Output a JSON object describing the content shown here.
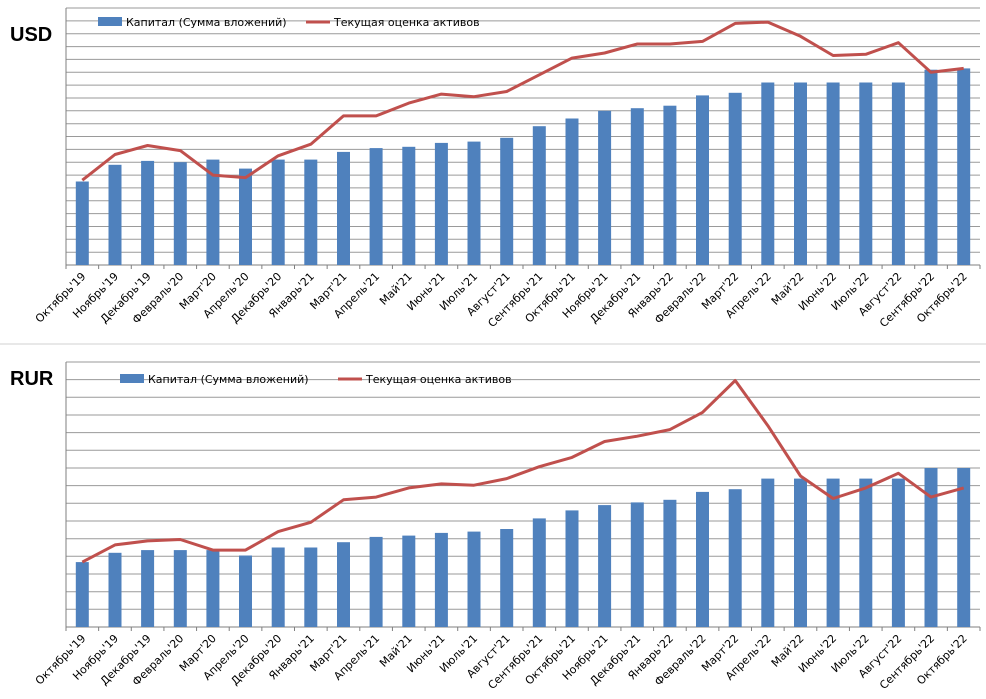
{
  "chart_data": [
    {
      "type": "bar",
      "currency_label": "USD",
      "legend_position": "top-left",
      "grid": true,
      "ylim": [
        0,
        100
      ],
      "categories": [
        "Октябрь'19",
        "Ноябрь'19",
        "Декабрь'19",
        "Февраль'20",
        "Март'20",
        "Апрель'20",
        "Декабрь'20",
        "Январь'21",
        "Март'21",
        "Апрель'21",
        "Май'21",
        "Июнь'21",
        "Июль'21",
        "Август'21",
        "Сентябрь'21",
        "Октябрь'21",
        "Ноябрь'21",
        "Декабрь'21",
        "Январь'22",
        "Февраль'22",
        "Март'22",
        "Апрель'22",
        "Май'22",
        "Июнь'22",
        "Июль'22",
        "Август'22",
        "Сентябрь'22",
        "Октябрь'22"
      ],
      "series": [
        {
          "name": "Капитал  (Сумма вложений)",
          "kind": "bar",
          "color": "#4f81bd",
          "values": [
            32.5,
            39,
            40.5,
            40,
            41,
            37.5,
            41,
            41,
            44,
            45.5,
            46,
            47.5,
            48,
            49.5,
            54,
            57,
            60,
            61,
            62,
            66,
            67,
            71,
            71,
            71,
            71,
            71,
            76,
            76.5
          ]
        },
        {
          "name": "Текущая оценка активов",
          "kind": "line",
          "color": "#c0504d",
          "values": [
            33,
            43,
            46.5,
            44.5,
            35,
            34,
            42.5,
            47,
            58,
            58,
            63,
            66.5,
            65.5,
            67.5,
            74,
            80.5,
            82.5,
            86,
            86,
            87,
            94,
            94.5,
            89,
            81.5,
            82,
            86.5,
            75,
            76.5
          ]
        }
      ]
    },
    {
      "type": "bar",
      "currency_label": "RUR",
      "legend_position": "top-left",
      "grid": true,
      "ylim": [
        0,
        100
      ],
      "categories": [
        "Октябрь'19",
        "Ноябрь'19",
        "Декабрь'19",
        "Февраль'20",
        "Март'20",
        "Апрель'20",
        "Декабрь'20",
        "Январь'21",
        "Март'21",
        "Апрель'21",
        "Май'21",
        "Июнь'21",
        "Июль'21",
        "Август'21",
        "Сентябрь'21",
        "Октябрь'21",
        "Ноябрь'21",
        "Декабрь'21",
        "Январь'22",
        "Февраль'22",
        "Март'22",
        "Апрель'22",
        "Май'22",
        "Июнь'22",
        "Июль'22",
        "Август'22",
        "Сентябрь'22",
        "Октябрь'22"
      ],
      "series": [
        {
          "name": "Капитал (Сумма вложений)",
          "kind": "bar",
          "color": "#4f81bd",
          "values": [
            24.5,
            28,
            29,
            29,
            29,
            27,
            30,
            30,
            32,
            34,
            34.5,
            35.5,
            36,
            37,
            41,
            44,
            46,
            47,
            48,
            51,
            52,
            56,
            56,
            56,
            56,
            56,
            60,
            60
          ]
        },
        {
          "name": "Текущая оценка активов",
          "kind": "line",
          "color": "#c0504d",
          "values": [
            24.5,
            31,
            32.5,
            33,
            29,
            29,
            36,
            39.5,
            48,
            49,
            52.5,
            54,
            53.5,
            56,
            60.5,
            64,
            70,
            72,
            74.5,
            81,
            93,
            76,
            57,
            48.5,
            52.5,
            58,
            49,
            52.5
          ]
        }
      ]
    }
  ]
}
